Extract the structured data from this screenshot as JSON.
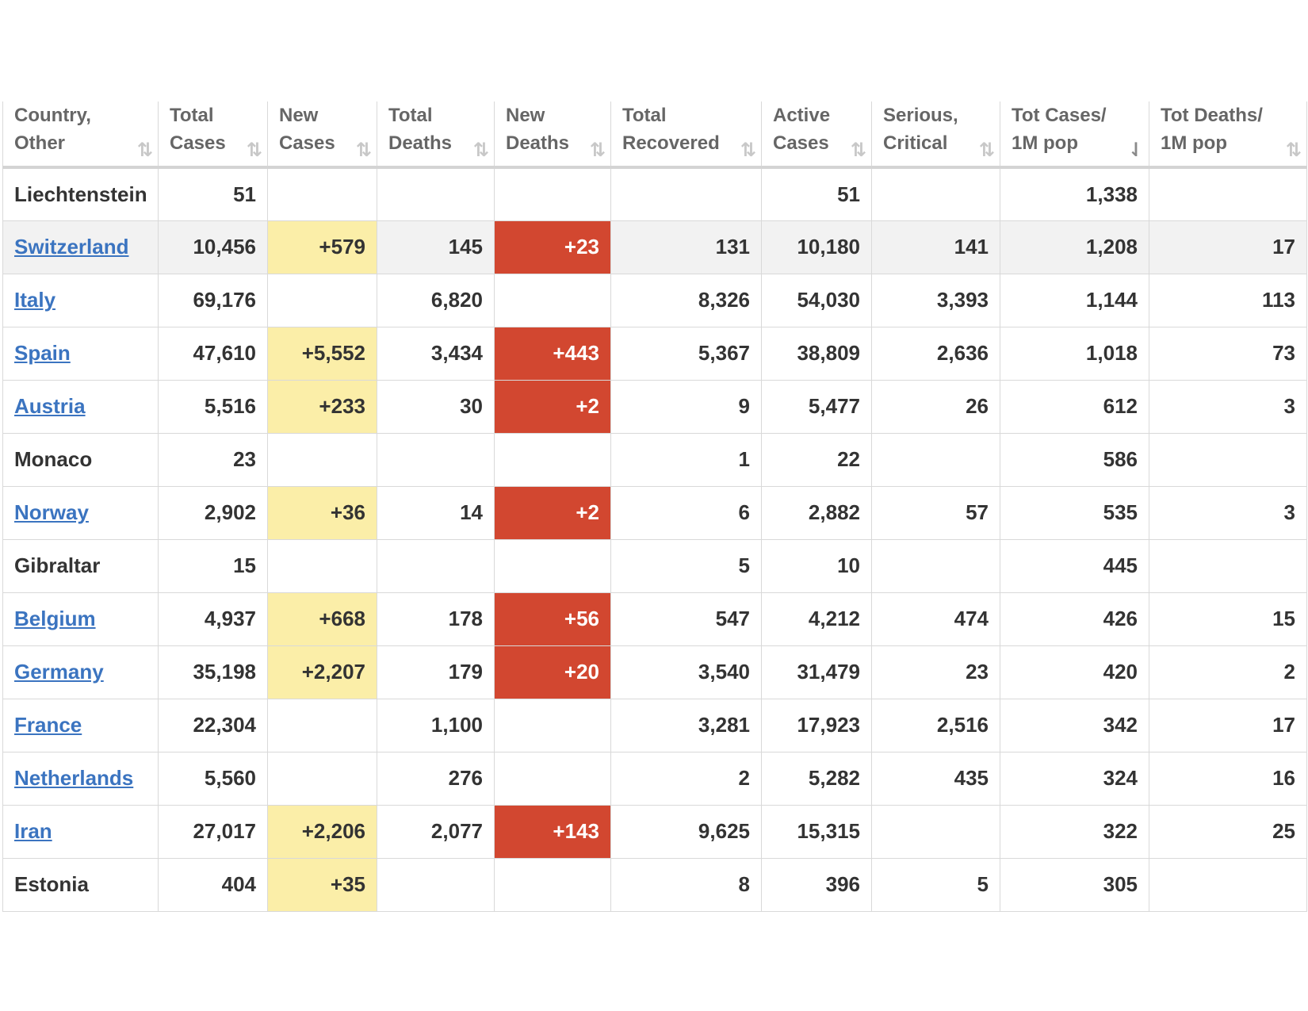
{
  "columns": [
    {
      "label": "Country,\nOther",
      "sort": "⇅"
    },
    {
      "label": "Total\nCases",
      "sort": "⇅"
    },
    {
      "label": "New\nCases",
      "sort": "⇅"
    },
    {
      "label": "Total\nDeaths",
      "sort": "⇅"
    },
    {
      "label": "New\nDeaths",
      "sort": "⇅"
    },
    {
      "label": "Total\nRecovered",
      "sort": "⇅"
    },
    {
      "label": "Active\nCases",
      "sort": "⇅"
    },
    {
      "label": "Serious,\nCritical",
      "sort": "⇅"
    },
    {
      "label": "Tot Cases/\n1M pop",
      "sort": "⇃"
    },
    {
      "label": "Tot Deaths/\n1M pop",
      "sort": "⇅"
    }
  ],
  "colors": {
    "link": "#3b74c0",
    "new_cases_bg": "#fbeea8",
    "new_deaths_bg": "#d24730",
    "highlight_row": "#f2f2f2"
  },
  "rows": [
    {
      "country": "Liechtenstein",
      "link": false,
      "total_cases": "51",
      "new_cases": "",
      "total_deaths": "",
      "new_deaths": "",
      "total_recovered": "",
      "active_cases": "51",
      "serious_critical": "",
      "tot_cases_1m": "1,338",
      "tot_deaths_1m": ""
    },
    {
      "country": "Switzerland",
      "link": true,
      "highlight": true,
      "total_cases": "10,456",
      "new_cases": "+579",
      "total_deaths": "145",
      "new_deaths": "+23",
      "total_recovered": "131",
      "active_cases": "10,180",
      "serious_critical": "141",
      "tot_cases_1m": "1,208",
      "tot_deaths_1m": "17"
    },
    {
      "country": "Italy",
      "link": true,
      "total_cases": "69,176",
      "new_cases": "",
      "total_deaths": "6,820",
      "new_deaths": "",
      "total_recovered": "8,326",
      "active_cases": "54,030",
      "serious_critical": "3,393",
      "tot_cases_1m": "1,144",
      "tot_deaths_1m": "113"
    },
    {
      "country": "Spain",
      "link": true,
      "total_cases": "47,610",
      "new_cases": "+5,552",
      "total_deaths": "3,434",
      "new_deaths": "+443",
      "total_recovered": "5,367",
      "active_cases": "38,809",
      "serious_critical": "2,636",
      "tot_cases_1m": "1,018",
      "tot_deaths_1m": "73"
    },
    {
      "country": "Austria",
      "link": true,
      "total_cases": "5,516",
      "new_cases": "+233",
      "total_deaths": "30",
      "new_deaths": "+2",
      "total_recovered": "9",
      "active_cases": "5,477",
      "serious_critical": "26",
      "tot_cases_1m": "612",
      "tot_deaths_1m": "3"
    },
    {
      "country": "Monaco",
      "link": false,
      "total_cases": "23",
      "new_cases": "",
      "total_deaths": "",
      "new_deaths": "",
      "total_recovered": "1",
      "active_cases": "22",
      "serious_critical": "",
      "tot_cases_1m": "586",
      "tot_deaths_1m": ""
    },
    {
      "country": "Norway",
      "link": true,
      "total_cases": "2,902",
      "new_cases": "+36",
      "total_deaths": "14",
      "new_deaths": "+2",
      "total_recovered": "6",
      "active_cases": "2,882",
      "serious_critical": "57",
      "tot_cases_1m": "535",
      "tot_deaths_1m": "3"
    },
    {
      "country": "Gibraltar",
      "link": false,
      "total_cases": "15",
      "new_cases": "",
      "total_deaths": "",
      "new_deaths": "",
      "total_recovered": "5",
      "active_cases": "10",
      "serious_critical": "",
      "tot_cases_1m": "445",
      "tot_deaths_1m": ""
    },
    {
      "country": "Belgium",
      "link": true,
      "total_cases": "4,937",
      "new_cases": "+668",
      "total_deaths": "178",
      "new_deaths": "+56",
      "total_recovered": "547",
      "active_cases": "4,212",
      "serious_critical": "474",
      "tot_cases_1m": "426",
      "tot_deaths_1m": "15"
    },
    {
      "country": "Germany",
      "link": true,
      "total_cases": "35,198",
      "new_cases": "+2,207",
      "total_deaths": "179",
      "new_deaths": "+20",
      "total_recovered": "3,540",
      "active_cases": "31,479",
      "serious_critical": "23",
      "tot_cases_1m": "420",
      "tot_deaths_1m": "2"
    },
    {
      "country": "France",
      "link": true,
      "total_cases": "22,304",
      "new_cases": "",
      "total_deaths": "1,100",
      "new_deaths": "",
      "total_recovered": "3,281",
      "active_cases": "17,923",
      "serious_critical": "2,516",
      "tot_cases_1m": "342",
      "tot_deaths_1m": "17"
    },
    {
      "country": "Netherlands",
      "link": true,
      "total_cases": "5,560",
      "new_cases": "",
      "total_deaths": "276",
      "new_deaths": "",
      "total_recovered": "2",
      "active_cases": "5,282",
      "serious_critical": "435",
      "tot_cases_1m": "324",
      "tot_deaths_1m": "16"
    },
    {
      "country": "Iran",
      "link": true,
      "total_cases": "27,017",
      "new_cases": "+2,206",
      "total_deaths": "2,077",
      "new_deaths": "+143",
      "total_recovered": "9,625",
      "active_cases": "15,315",
      "serious_critical": "",
      "tot_cases_1m": "322",
      "tot_deaths_1m": "25"
    },
    {
      "country": "Estonia",
      "link": false,
      "total_cases": "404",
      "new_cases": "+35",
      "total_deaths": "",
      "new_deaths": "",
      "total_recovered": "8",
      "active_cases": "396",
      "serious_critical": "5",
      "tot_cases_1m": "305",
      "tot_deaths_1m": ""
    }
  ]
}
